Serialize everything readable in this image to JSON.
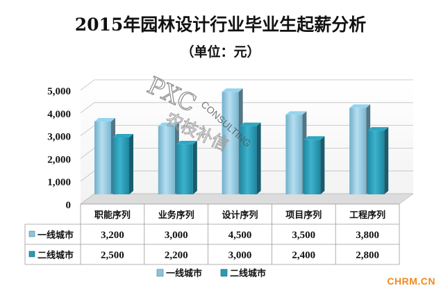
{
  "header": {
    "title": "2015年园林设计行业毕业生起薪分析",
    "subtitle": "（单位：元）"
  },
  "watermark": {
    "logo": "PXC",
    "text": "CONSULTING",
    "cn": "农枝补信"
  },
  "site_badge": "CHRM.CN",
  "chart_data": {
    "type": "bar",
    "categories": [
      "职能序列",
      "业务序列",
      "设计序列",
      "项目序列",
      "工程序列"
    ],
    "series": [
      {
        "name": "一线城市",
        "values": [
          3200,
          3000,
          4500,
          3500,
          3800
        ],
        "color": "#8ac4dc"
      },
      {
        "name": "二线城市",
        "values": [
          2500,
          2200,
          3000,
          2400,
          2800
        ],
        "color": "#2a9ab4"
      }
    ],
    "ylim": [
      0,
      5000
    ],
    "yticks": [
      "0",
      "1,000",
      "2,000",
      "3,000",
      "4,000",
      "5,000"
    ],
    "table_values": [
      [
        "3,200",
        "3,000",
        "4,500",
        "3,500",
        "3,800"
      ],
      [
        "2,500",
        "2,200",
        "3,000",
        "2,400",
        "2,800"
      ]
    ],
    "grid": true,
    "legend": "bottom",
    "data_table": true
  }
}
